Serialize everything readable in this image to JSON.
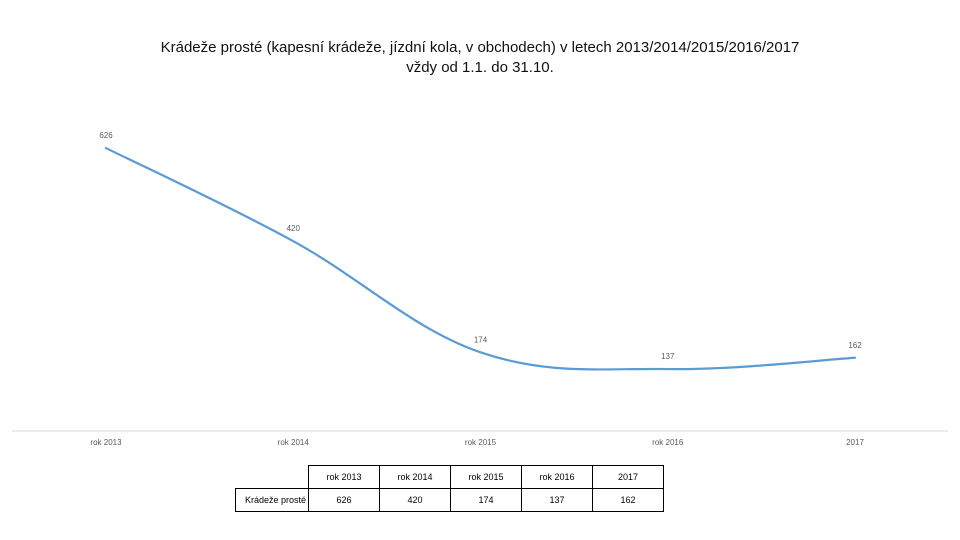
{
  "title_lines": [
    "Krádeže prosté (kapesní krádeže, jízdní kola, v obchodech) v letech 2013/2014/2015/2016/2017",
    "vždy od 1.1. do 31.10."
  ],
  "chart_data": {
    "type": "line",
    "categories": [
      "rok 2013",
      "rok 2014",
      "rok 2015",
      "rok 2016",
      "2017"
    ],
    "series": [
      {
        "name": "Krádeže prosté",
        "values": [
          626,
          420,
          174,
          137,
          162
        ]
      }
    ],
    "data_labels": [
      "626",
      "420",
      "174",
      "137",
      "162"
    ],
    "ylim": [
      0,
      700
    ],
    "grid": false,
    "legend": "none",
    "line_color": "#5b9bd5",
    "axis_color": "#d9d9d9"
  },
  "table": {
    "headers": [
      "rok 2013",
      "rok 2014",
      "rok 2015",
      "rok 2016",
      "2017"
    ],
    "row_label": "Krádeže prosté",
    "values": [
      "626",
      "420",
      "174",
      "137",
      "162"
    ]
  }
}
